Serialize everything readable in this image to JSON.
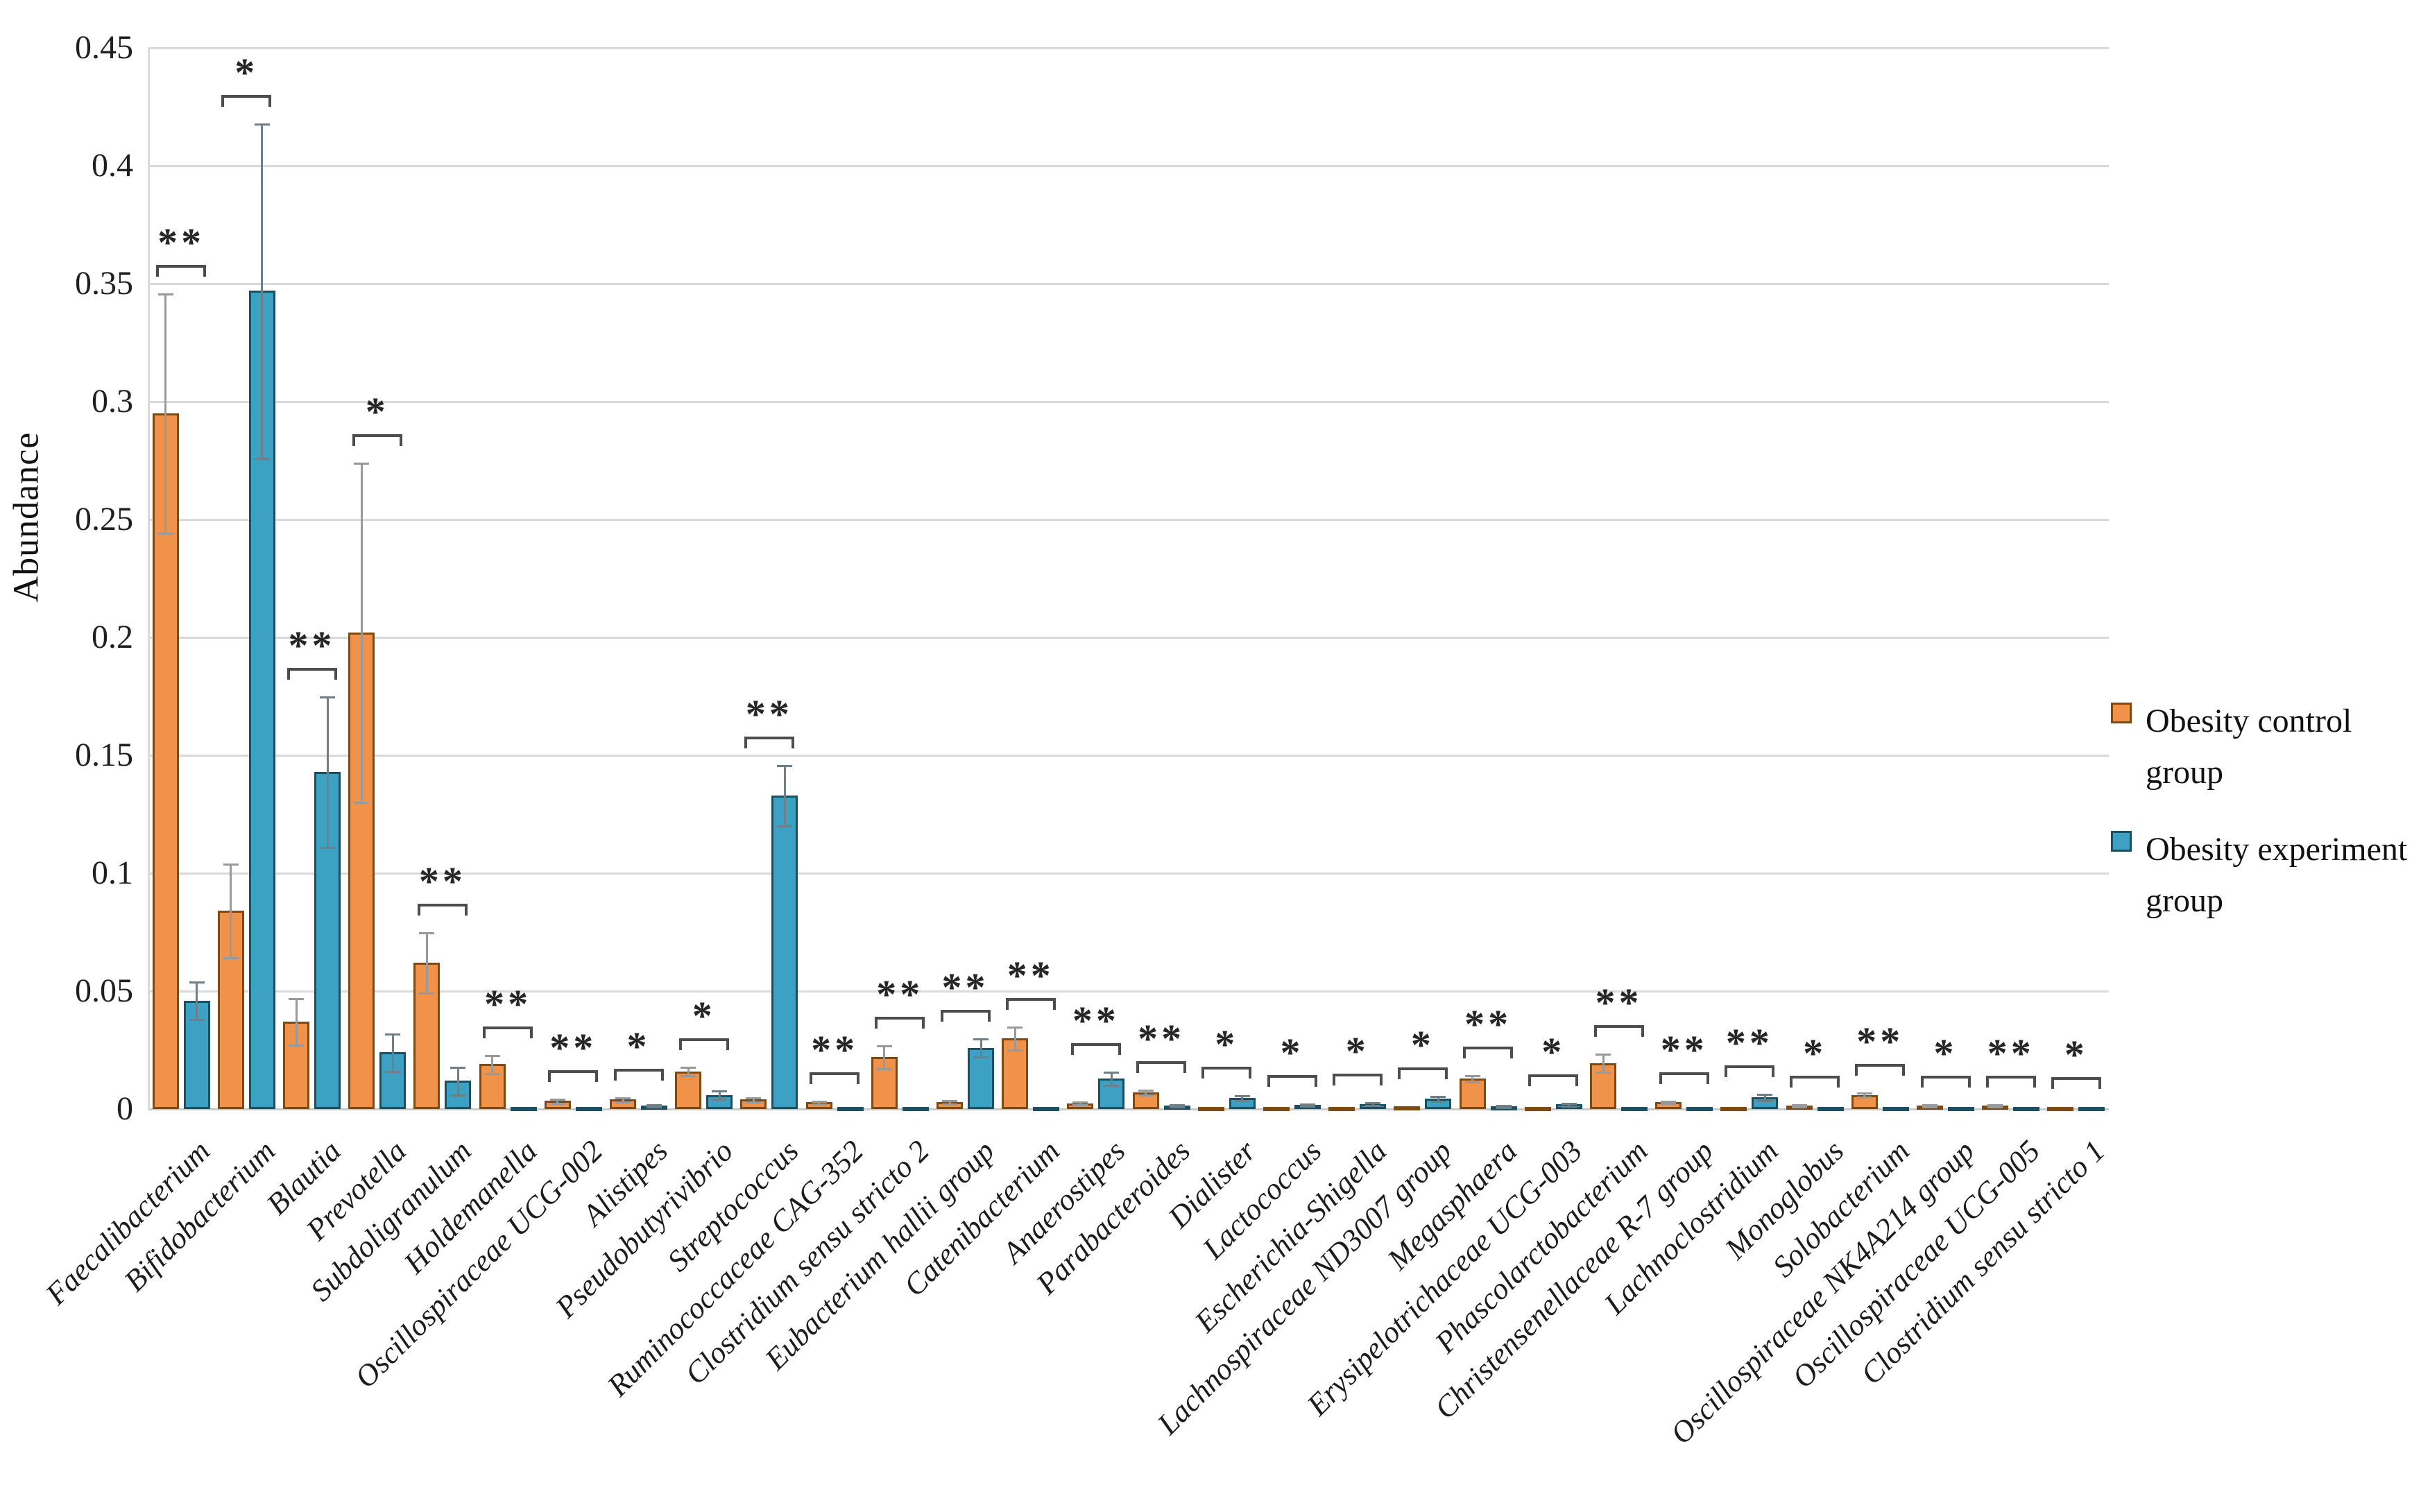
{
  "chart_data": {
    "type": "bar",
    "title": "",
    "xlabel": "",
    "ylabel": "Abundance",
    "ylim": [
      0,
      0.45
    ],
    "yticks": [
      "0",
      "0.05",
      "0.1",
      "0.15",
      "0.2",
      "0.25",
      "0.3",
      "0.35",
      "0.4",
      "0.45"
    ],
    "grid": true,
    "legend_position": "right",
    "categories": [
      "Faecalibacterium",
      "Bifidobacterium",
      "Blautia",
      "Prevotella",
      "Subdoligranulum",
      "Holdemanella",
      "Oscillospiraceae UCG-002",
      "Alistipes",
      "Pseudobutyrivibrio",
      "Streptococcus",
      "Ruminococcaceae CAG-352",
      "Clostridium sensu stricto 2",
      "Eubacterium hallii group",
      "Catenibacterium",
      "Anaerostipes",
      "Parabacteroides",
      "Dialister",
      "Lactococcus",
      "Escherichia-Shigella",
      "Lachnospiraceae ND3007 group",
      "Megasphaera",
      "Erysipelotrichaceae UCG-003",
      "Phascolarctobacterium",
      "Christensenellaceae R-7 group",
      "Lachnoclostridium",
      "Monoglobus",
      "Solobacterium",
      "Oscillospiraceae NK4A214 group",
      "Oscillospiraceae UCG-005",
      "Clostridium sensu stricto 1"
    ],
    "series": [
      {
        "name": "Obesity control group",
        "color": "#F0924A",
        "border_color": "#7E4A12",
        "error_color": "#97999b",
        "values": [
          0.295,
          0.084,
          0.037,
          0.202,
          0.062,
          0.019,
          0.0035,
          0.004,
          0.016,
          0.004,
          0.0028,
          0.022,
          0.003,
          0.03,
          0.0025,
          0.007,
          0.001,
          0.001,
          0.0008,
          0.0012,
          0.013,
          0.0006,
          0.0195,
          0.003,
          0.0008,
          0.0015,
          0.006,
          0.0015,
          0.0015,
          0.001
        ],
        "errors": [
          0.051,
          0.02,
          0.01,
          0.072,
          0.013,
          0.004,
          0.001,
          0.001,
          0.002,
          0.001,
          0.0008,
          0.005,
          0.0008,
          0.005,
          0.0008,
          0.0012,
          0.0004,
          0.0004,
          0.0003,
          0.0004,
          0.0015,
          0.0003,
          0.004,
          0.0006,
          0.0003,
          0.0005,
          0.001,
          0.0005,
          0.0005,
          0.0004
        ]
      },
      {
        "name": "Obesity experiment group",
        "color": "#3CA1C3",
        "border_color": "#1C4F62",
        "error_color": "#6e7f88",
        "values": [
          0.046,
          0.347,
          0.143,
          0.024,
          0.012,
          0.001,
          0.001,
          0.0015,
          0.006,
          0.133,
          0.0008,
          0.001,
          0.026,
          0.001,
          0.013,
          0.0015,
          0.0048,
          0.0018,
          0.0022,
          0.0045,
          0.0012,
          0.002,
          0.0008,
          0.0008,
          0.005,
          0.0008,
          0.0008,
          0.0008,
          0.0008,
          0.0008
        ],
        "errors": [
          0.008,
          0.071,
          0.032,
          0.008,
          0.006,
          0.0004,
          0.0004,
          0.0005,
          0.002,
          0.013,
          0.0003,
          0.0004,
          0.004,
          0.0004,
          0.003,
          0.0006,
          0.0012,
          0.0006,
          0.0006,
          0.0012,
          0.0005,
          0.0007,
          0.0003,
          0.0003,
          0.0015,
          0.0003,
          0.0003,
          0.0003,
          0.0003,
          0.0003
        ]
      }
    ],
    "significance": [
      "**",
      "*",
      "**",
      "*",
      "**",
      "**",
      "**",
      "*",
      "*",
      "**",
      "**",
      "**",
      "**",
      "**",
      "**",
      "**",
      "*",
      "*",
      "*",
      "*",
      "**",
      "*",
      "**",
      "**",
      "**",
      "*",
      "**",
      "*",
      "**",
      "*"
    ],
    "significance_color": "#262626",
    "gridline_color": "#d9d9d9"
  },
  "legend": {
    "items": [
      {
        "line1": "Obesity control",
        "line2": "group"
      },
      {
        "line1": "Obesity experiment",
        "line2": "group"
      }
    ]
  }
}
